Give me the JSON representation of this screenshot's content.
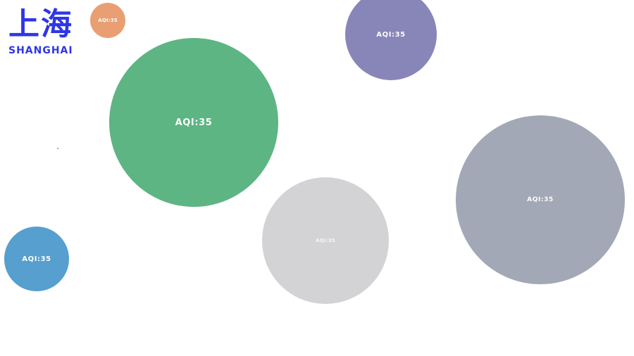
{
  "brand": {
    "cn_title": "上海",
    "en_title": "SHANGHAI",
    "color": "#2f36e6"
  },
  "bubbles": [
    {
      "id": "orange",
      "label": "AQI:35",
      "color": "#e99f72"
    },
    {
      "id": "purple",
      "label": "AQI:35",
      "color": "#8886b8"
    },
    {
      "id": "green",
      "label": "AQI:35",
      "color": "#5db583"
    },
    {
      "id": "gray-large",
      "label": "AQI:35",
      "color": "#a2a8b6"
    },
    {
      "id": "gray-light",
      "label": "AQI:35",
      "color": "#d3d3d6"
    },
    {
      "id": "blue",
      "label": "AQI:35",
      "color": "#569fce"
    }
  ],
  "marker": {
    "color": "#e06a6a"
  }
}
